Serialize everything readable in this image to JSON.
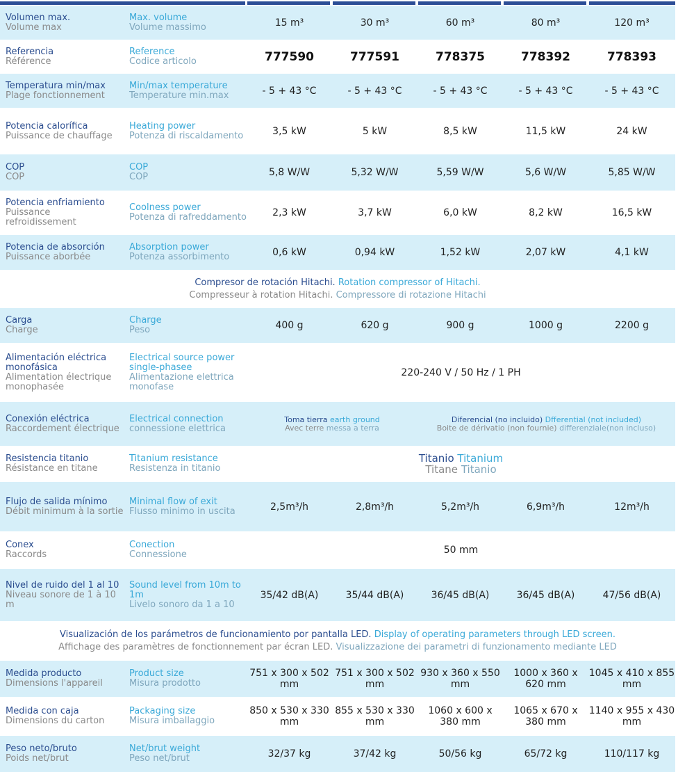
{
  "colors": {
    "header": "#2b4d96",
    "row_alt": "#d6eff9",
    "es": "#2b4d8f",
    "fr": "#8a8a8a",
    "en": "#3aa9d8",
    "it": "#7fa7bd"
  },
  "rows": [
    {
      "es": "Volumen max.",
      "fr": "Volume max",
      "en": "Max. volume",
      "it": "Volume massimo",
      "values": [
        "15 m³",
        "30 m³",
        "60 m³",
        "80 m³",
        "120 m³"
      ]
    },
    {
      "es": "Referencia",
      "fr": "Référence",
      "en": "Reference",
      "it": "Codice articolo",
      "values": [
        "777590",
        "777591",
        "778375",
        "778392",
        "778393"
      ]
    },
    {
      "es": "Temperatura min/max",
      "fr": "Plage fonctionnement",
      "en": "Min/max temperature",
      "it": "Temperature min.max",
      "values": [
        "- 5 + 43 °C",
        "- 5 + 43 °C",
        "- 5 + 43 °C",
        "- 5 + 43 °C",
        "- 5 + 43 °C"
      ]
    },
    {
      "es": "Potencia calorífica",
      "fr": "Puissance de chauffage",
      "en": "Heating power",
      "it": "Potenza di riscaldamento",
      "values": [
        "3,5 kW",
        "5 kW",
        "8,5 kW",
        "11,5 kW",
        "24 kW"
      ]
    },
    {
      "es": "COP",
      "fr": "COP",
      "en": "COP",
      "it": "COP",
      "values": [
        "5,8 W/W",
        "5,32 W/W",
        "5,59 W/W",
        "5,6 W/W",
        "5,85 W/W"
      ]
    },
    {
      "es": "Potencia enfriamiento",
      "fr": "Puissance refroidissement",
      "en": "Coolness power",
      "it": "Potenza di rafreddamento",
      "values": [
        "2,3 kW",
        "3,7 kW",
        "6,0 kW",
        "8,2 kW",
        "16,5 kW"
      ]
    },
    {
      "es": "Potencia de absorción",
      "fr": "Puissance aborbée",
      "en": "Absorption power",
      "it": "Potenza assorbimento",
      "values": [
        "0,6 kW",
        "0,94 kW",
        "1,52 kW",
        "2,07 kW",
        "4,1 kW"
      ]
    },
    {
      "note": {
        "es": "Compresor de rotación Hitachi.",
        "en": "Rotation compressor of Hitachi.",
        "fr": "Compresseur à rotation Hitachi.",
        "it": "Compressore di rotazione Hitachi"
      }
    },
    {
      "es": "Carga",
      "fr": "Charge",
      "en": "Charge",
      "it": "Peso",
      "values": [
        "400 g",
        "620 g",
        "900 g",
        "1000 g",
        "2200 g"
      ]
    },
    {
      "es": "Alimentación eléctrica monofásica",
      "fr": "Alimentation électrique monophasée",
      "en": "Electrical source power single-phasee",
      "it": "Alimentazione elettrica monofase",
      "span": "220-240 V / 50 Hz / 1 PH"
    },
    {
      "es": "Conexión eléctrica",
      "fr": "Raccordement électrique",
      "en": "Electrical connection",
      "it": "connessione elettrica",
      "split": [
        {
          "es": "Toma tierra",
          "en": "earth ground",
          "fr": "Avec terre",
          "it": "messa a terra"
        },
        {
          "es": "Diferencial (no incluido)",
          "en": "Dfferential (not included)",
          "fr": "Boite de dérivatio (non fournie)",
          "it": "differenziale(non incluso)"
        }
      ]
    },
    {
      "es": "Resistencia titanio",
      "fr": "Résistance en titane",
      "en": "Titanium resistance",
      "it": "Resistenza in titanio",
      "multi": {
        "es": "Titanio",
        "en": "Titanium",
        "fr": "Titane",
        "it": "Titanio"
      }
    },
    {
      "es": "Flujo de salida mínimo",
      "fr": "Débit minimum à la sortie",
      "en": "Minimal flow of exit",
      "it": "Flusso minimo in uscita",
      "values": [
        "2,5m³/h",
        "2,8m³/h",
        "5,2m³/h",
        "6,9m³/h",
        "12m³/h"
      ]
    },
    {
      "es": "Conex",
      "fr": "Raccords",
      "en": "Conection",
      "it": "Connessione",
      "span": "50 mm"
    },
    {
      "es": "Nivel de ruido del 1 al 10",
      "fr": "Niveau sonore de 1 à 10 m",
      "en": "Sound level from 10m to 1m",
      "it": "Livelo sonoro da 1 a 10",
      "values": [
        "35/42 dB(A)",
        "35/44 dB(A)",
        "36/45 dB(A)",
        "36/45 dB(A)",
        "47/56 dB(A)"
      ]
    },
    {
      "note": {
        "es": "Visualización de los parámetros de funcionamiento por pantalla LED.",
        "en": "Display of operating parameters through LED screen.",
        "fr": "Affichage des paramètres de fonctionnement par écran LED.",
        "it": "Visualizzazione dei parametri di funzionamento mediante LED"
      }
    },
    {
      "es": "Medida producto",
      "fr": "Dimensions l'appareil",
      "en": "Product size",
      "it": "Misura prodotto",
      "values": [
        "751 x 300 x 502 mm",
        "751 x 300 x 502 mm",
        "930 x 360 x 550 mm",
        "1000 x 360 x 620 mm",
        "1045 x 410 x 855 mm"
      ]
    },
    {
      "es": "Medida con caja",
      "fr": "Dimensions du carton",
      "en": "Packaging size",
      "it": "Misura imballaggio",
      "values": [
        "850 x 530 x 330 mm",
        "855 x 530 x 330 mm",
        "1060 x 600 x 380 mm",
        "1065 x 670 x 380 mm",
        "1140 x 955 x 430 mm"
      ]
    },
    {
      "es": "Peso neto/bruto",
      "fr": "Poids net/brut",
      "en": "Net/brut weight",
      "it": "Peso net/brut",
      "values": [
        "32/37 kg",
        "37/42 kg",
        "50/56 kg",
        "65/72 kg",
        "110/117 kg"
      ]
    }
  ]
}
